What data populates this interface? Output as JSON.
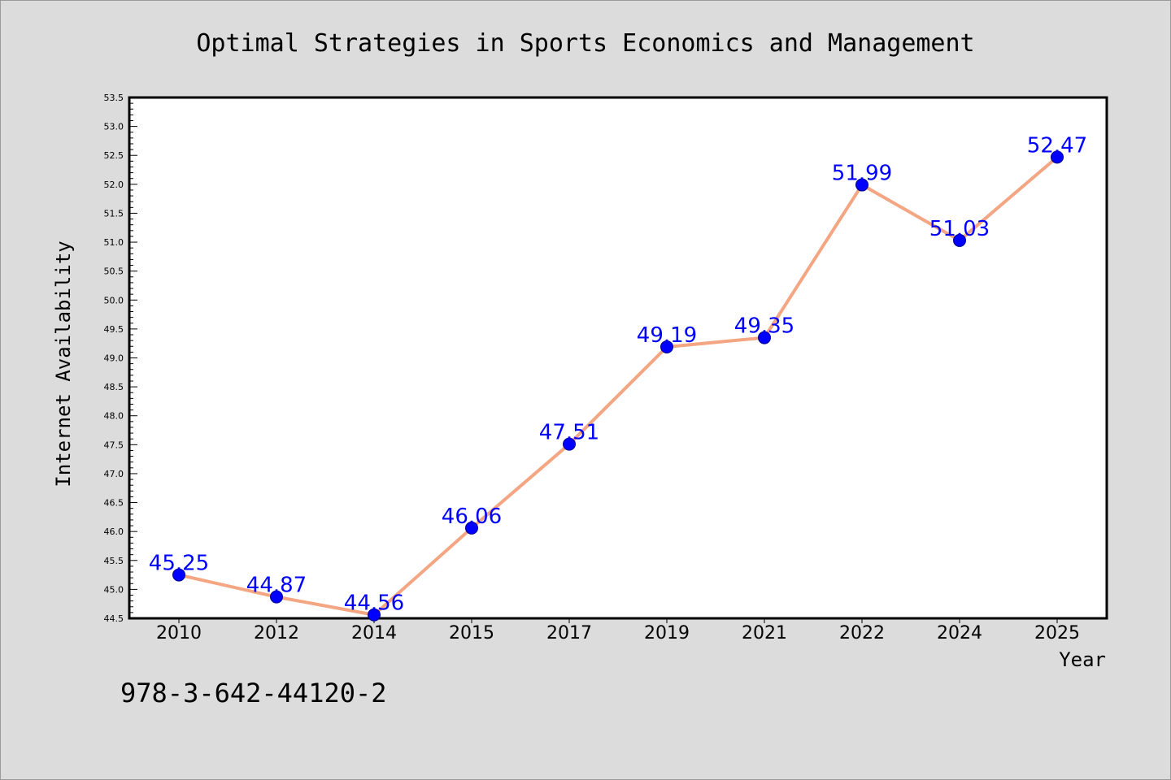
{
  "chart_data": {
    "type": "line",
    "title": "Optimal Strategies in Sports Economics and Management",
    "xlabel": "Year",
    "ylabel": "Internet Availability",
    "categories": [
      "2010",
      "2012",
      "2014",
      "2015",
      "2017",
      "2019",
      "2021",
      "2022",
      "2024",
      "2025"
    ],
    "series": [
      {
        "values": [
          45.25,
          44.87,
          44.56,
          46.06,
          47.51,
          49.19,
          49.35,
          51.99,
          51.03,
          52.47
        ]
      }
    ],
    "data_labels": [
      "45.25",
      "44.87",
      "44.56",
      "46.06",
      "47.51",
      "49.19",
      "49.35",
      "51.99",
      "51.03",
      "52.47"
    ],
    "ylim": [
      44.5,
      53.5
    ],
    "yticks": [
      "44.5",
      "45.0",
      "45.5",
      "46.0",
      "46.5",
      "47.0",
      "47.5",
      "48.0",
      "48.5",
      "49.0",
      "49.5",
      "50.0",
      "50.5",
      "51.0",
      "51.5",
      "52.0",
      "52.5",
      "53.0",
      "53.5"
    ],
    "grid": false,
    "line_color": "#f4a582",
    "marker_color": "#0000ff",
    "label_color": "#0000ff"
  },
  "footer_text": "978-3-642-44120-2"
}
